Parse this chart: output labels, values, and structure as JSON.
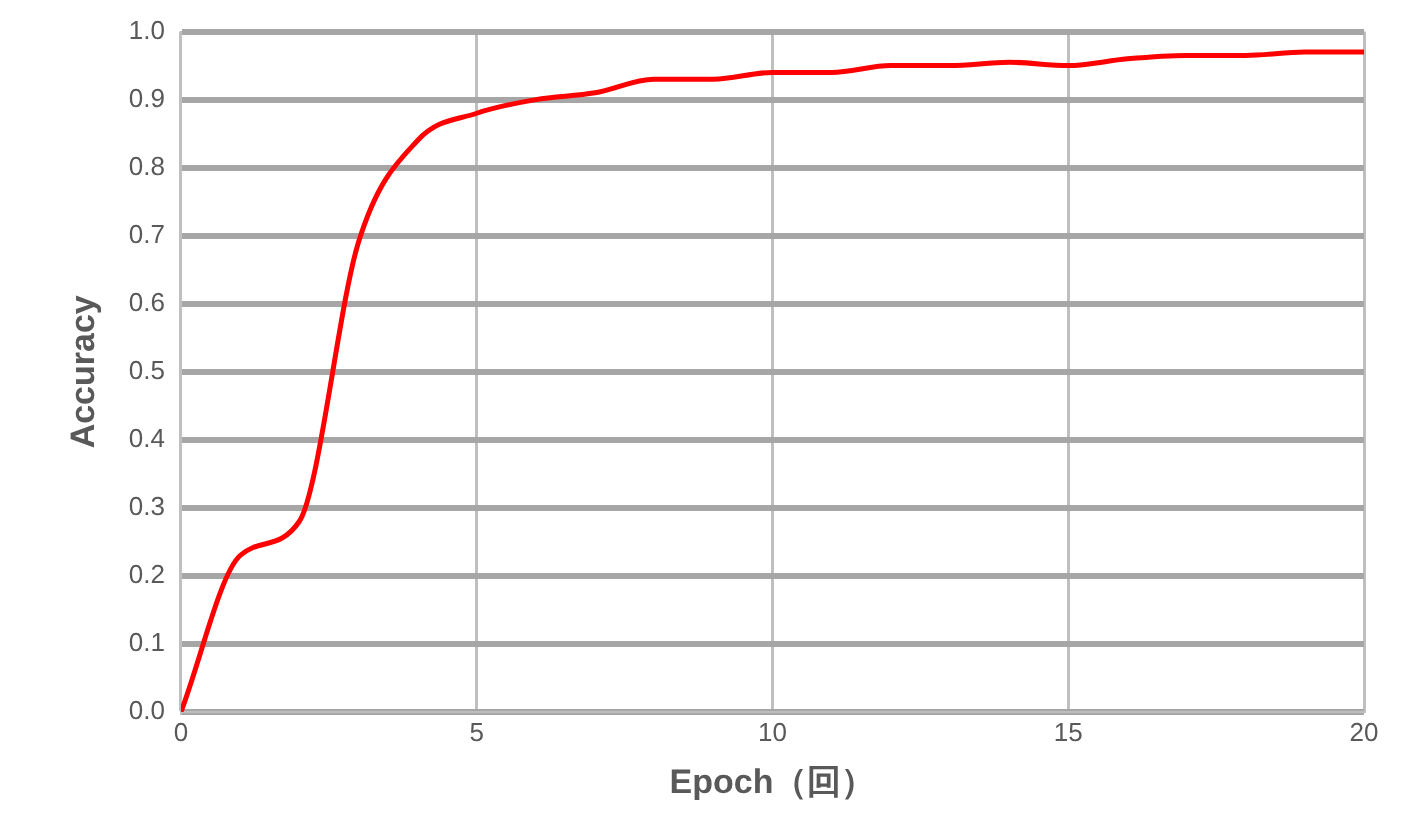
{
  "chart_data": {
    "type": "line",
    "xlabel": "Epoch（回）",
    "ylabel": "Accuracy",
    "x": [
      0,
      1,
      2,
      3,
      4,
      5,
      6,
      7,
      8,
      9,
      10,
      11,
      12,
      13,
      14,
      15,
      16,
      17,
      18,
      19,
      20
    ],
    "series": [
      {
        "color": "#ff0000",
        "values": [
          0,
          0.23,
          0.28,
          0.69,
          0.84,
          0.88,
          0.9,
          0.91,
          0.93,
          0.93,
          0.94,
          0.94,
          0.95,
          0.95,
          0.955,
          0.95,
          0.96,
          0.965,
          0.965,
          0.97,
          0.97
        ]
      }
    ],
    "xlim": [
      0,
      20
    ],
    "xticks": [
      0,
      5,
      10,
      15,
      20
    ],
    "ylim": [
      0,
      1
    ],
    "yticks": [
      {
        "value": 0,
        "label": "0.0"
      },
      {
        "value": 0.1,
        "label": "0.1"
      },
      {
        "value": 0.2,
        "label": "0.2"
      },
      {
        "value": 0.3,
        "label": "0.3"
      },
      {
        "value": 0.4,
        "label": "0.4"
      },
      {
        "value": 0.5,
        "label": "0.5"
      },
      {
        "value": 0.6,
        "label": "0.6"
      },
      {
        "value": 0.7,
        "label": "0.7"
      },
      {
        "value": 0.8,
        "label": "0.8"
      },
      {
        "value": 0.9,
        "label": "0.9"
      },
      {
        "value": 1,
        "label": "1.0"
      }
    ],
    "grid": true,
    "legend": false,
    "marker": "none",
    "line_style": "solid"
  }
}
